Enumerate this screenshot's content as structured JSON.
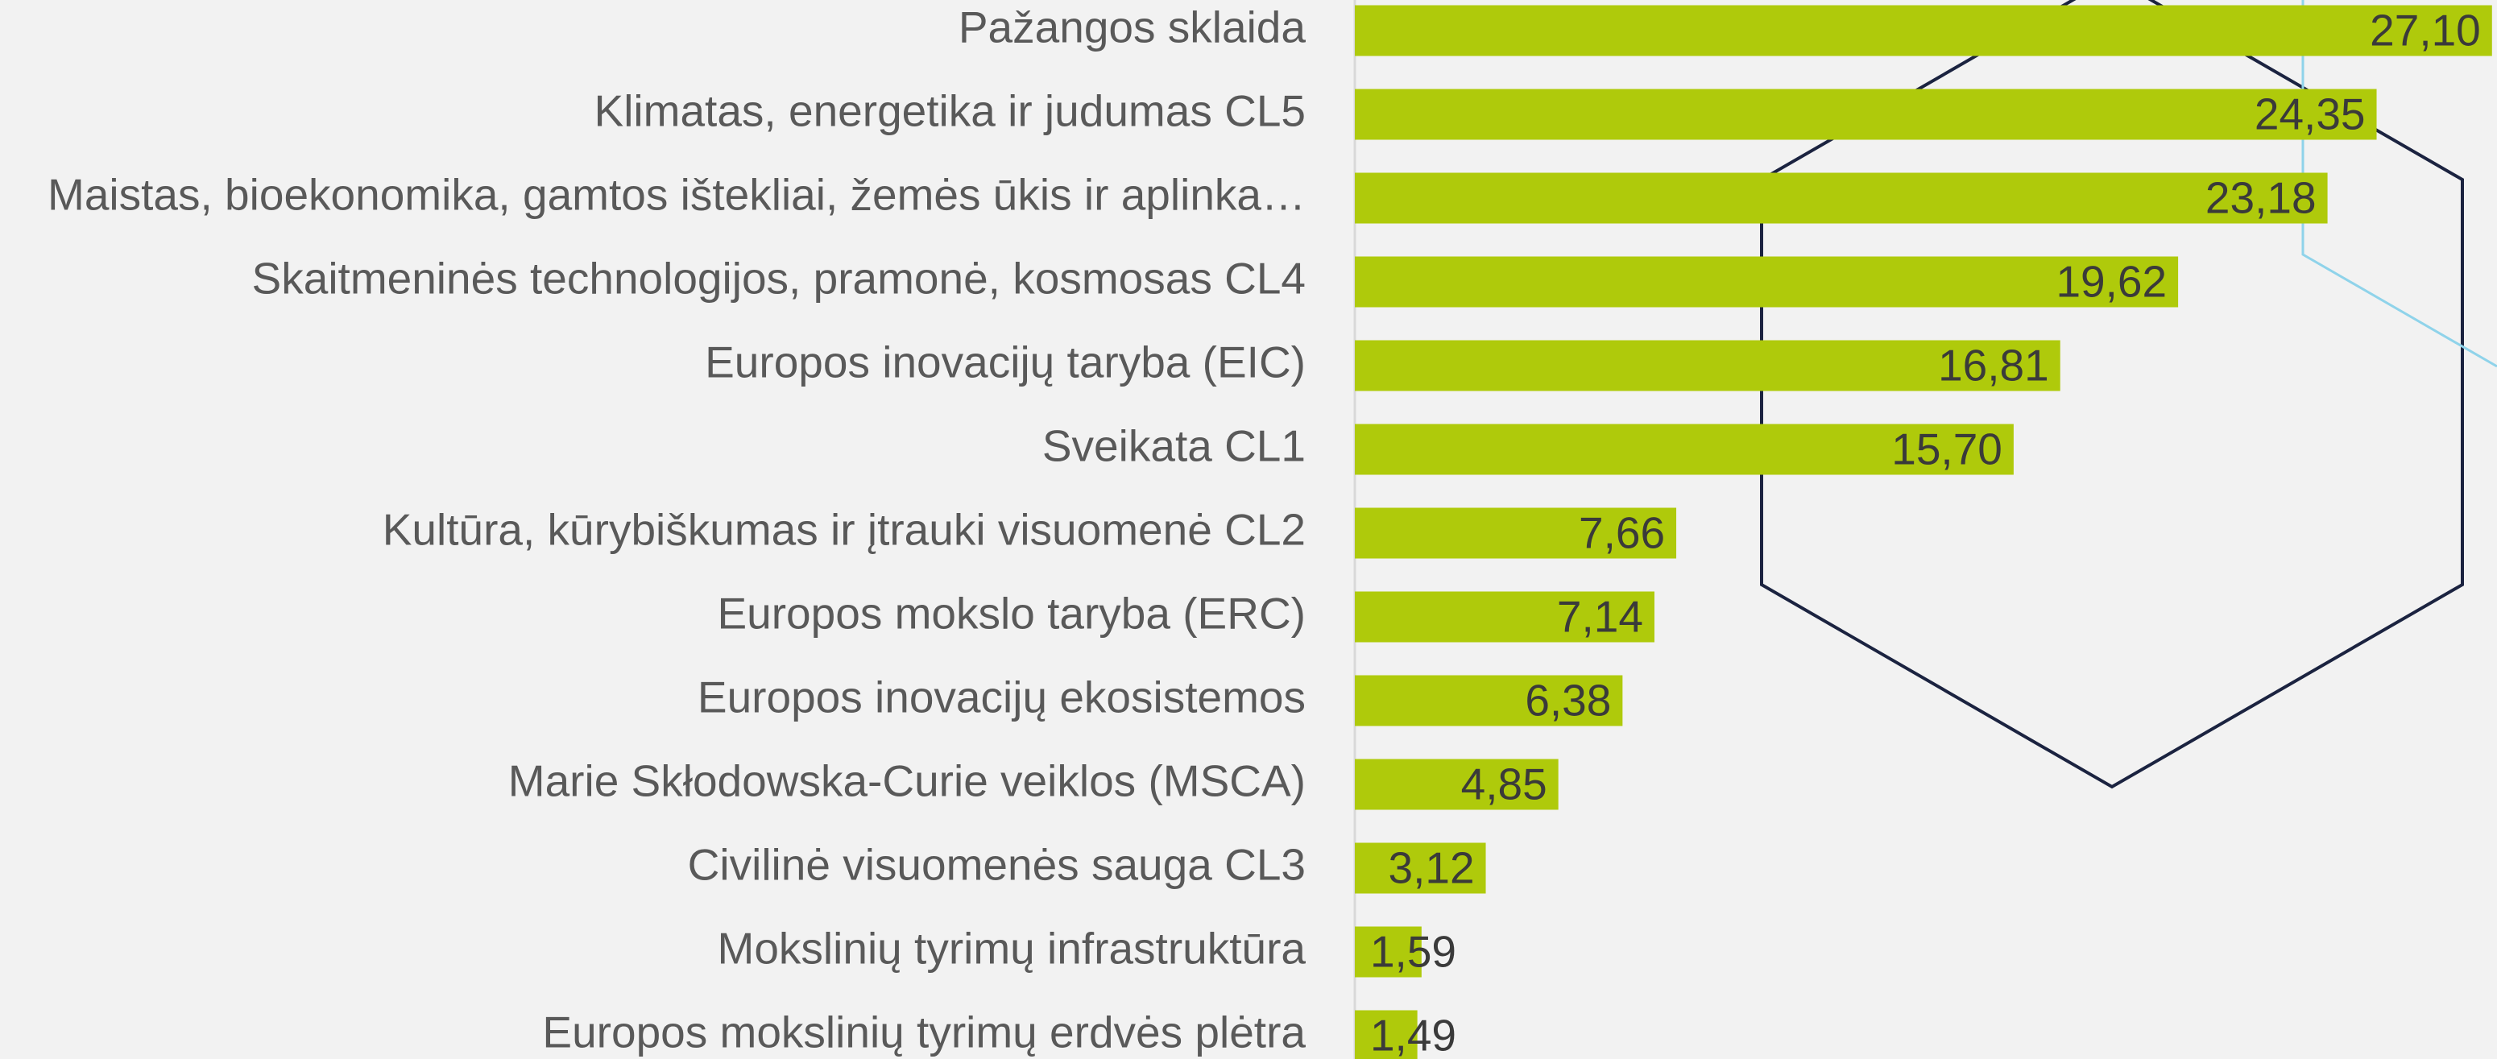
{
  "chart_data": {
    "type": "barh",
    "categories": [
      "Pažangos sklaida",
      "Klimatas, energetika ir judumas CL5",
      "Maistas, bioekonomika, gamtos ištekliai, žemės ūkis ir aplinka…",
      "Skaitmeninės technologijos, pramonė, kosmosas CL4",
      "Europos inovacijų taryba (EIC)",
      "Sveikata CL1",
      "Kultūra, kūrybiškumas ir įtrauki visuomenė CL2",
      "Europos mokslo taryba (ERC)",
      "Europos inovacijų ekosistemos",
      "Marie Skłodowska-Curie veiklos (MSCA)",
      "Civilinė visuomenės sauga CL3",
      "Mokslinių tyrimų infrastruktūra",
      "Europos mokslinių tyrimų erdvės plėtra"
    ],
    "values": [
      27.1,
      24.35,
      23.18,
      19.62,
      16.81,
      15.7,
      7.66,
      7.14,
      6.38,
      4.85,
      3.12,
      1.59,
      1.49
    ],
    "value_labels": [
      "27,10",
      "24,35",
      "23,18",
      "19,62",
      "16,81",
      "15,70",
      "7,66",
      "7,14",
      "6,38",
      "4,85",
      "3,12",
      "1,59",
      "1,49"
    ],
    "color": "#afca0b",
    "xlim": [
      0,
      27.2
    ]
  }
}
